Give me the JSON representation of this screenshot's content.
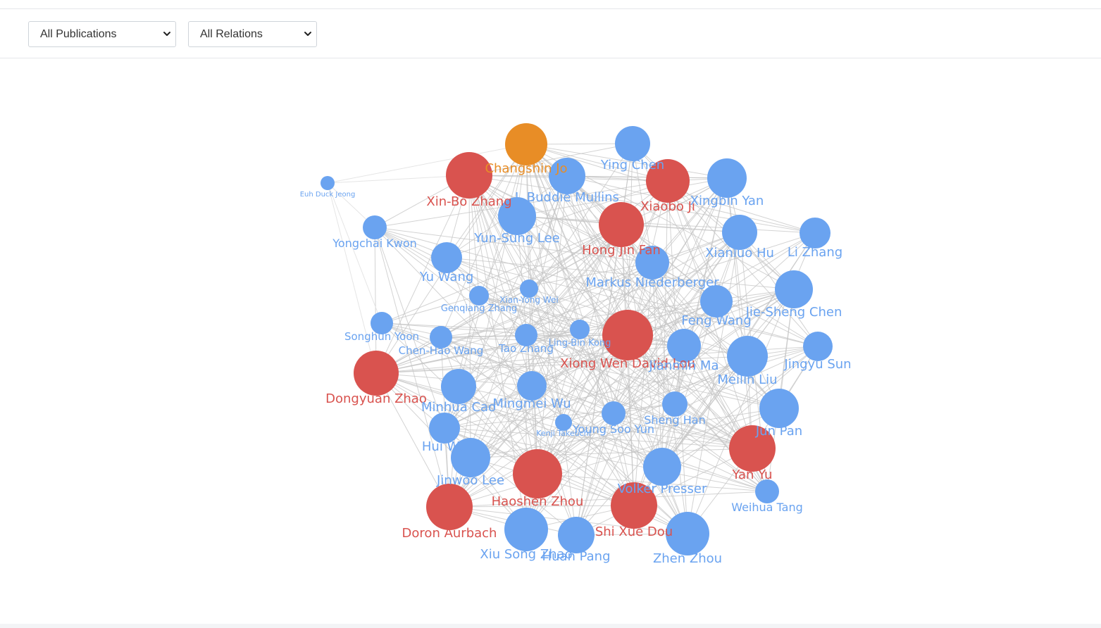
{
  "filters": {
    "publications": {
      "selected": "All Publications",
      "options": [
        "All Publications"
      ]
    },
    "relations": {
      "selected": "All Relations",
      "options": [
        "All Relations"
      ]
    }
  },
  "colors": {
    "edge": "#c4c4c4",
    "edge_light": "#e2e2e2",
    "blue": "#6aa3f0",
    "red": "#d9534f",
    "orange": "#e88d26"
  },
  "graph": {
    "nodes": [
      {
        "id": 0,
        "name": "Changshin Jo",
        "group": "orange"
      },
      {
        "id": 1,
        "name": "Ying Chen",
        "group": "blue"
      },
      {
        "id": 2,
        "name": "Xin-Bo Zhang",
        "group": "red"
      },
      {
        "id": 3,
        "name": "Euh Duck Jeong",
        "group": "blue"
      },
      {
        "id": 4,
        "name": "J. Buddie Mullins",
        "group": "blue"
      },
      {
        "id": 5,
        "name": "Xiaobo Ji",
        "group": "red"
      },
      {
        "id": 6,
        "name": "Xingbin Yan",
        "group": "blue"
      },
      {
        "id": 7,
        "name": "Yun-Sung Lee",
        "group": "blue"
      },
      {
        "id": 8,
        "name": "Hong Jin Fan",
        "group": "red"
      },
      {
        "id": 9,
        "name": "Yongchai Kwon",
        "group": "blue"
      },
      {
        "id": 10,
        "name": "Xianluo Hu",
        "group": "blue"
      },
      {
        "id": 11,
        "name": "Li Zhang",
        "group": "blue"
      },
      {
        "id": 12,
        "name": "Yu Wang",
        "group": "blue"
      },
      {
        "id": 13,
        "name": "Markus Niederberger",
        "group": "blue"
      },
      {
        "id": 14,
        "name": "Genqiang Zhang",
        "group": "blue"
      },
      {
        "id": 15,
        "name": "Xian-Yong Wei",
        "group": "blue"
      },
      {
        "id": 16,
        "name": "Jie-Sheng Chen",
        "group": "blue"
      },
      {
        "id": 17,
        "name": "Feng Wang",
        "group": "blue"
      },
      {
        "id": 18,
        "name": "Songhun Yoon",
        "group": "blue"
      },
      {
        "id": 19,
        "name": "Chen-Hao Wang",
        "group": "blue"
      },
      {
        "id": 20,
        "name": "Tao Zhang",
        "group": "blue"
      },
      {
        "id": 21,
        "name": "Ling-Bin Kong",
        "group": "blue"
      },
      {
        "id": 22,
        "name": "Xiong Wen David Lou",
        "group": "red"
      },
      {
        "id": 23,
        "name": "Jianmin Ma",
        "group": "blue"
      },
      {
        "id": 24,
        "name": "Meilin Liu",
        "group": "blue"
      },
      {
        "id": 25,
        "name": "Jingyu Sun",
        "group": "blue"
      },
      {
        "id": 26,
        "name": "Dongyuan Zhao",
        "group": "red"
      },
      {
        "id": 27,
        "name": "Minhua Cao",
        "group": "blue"
      },
      {
        "id": 28,
        "name": "Mingmei Wu",
        "group": "blue"
      },
      {
        "id": 29,
        "name": "Young Soo Yun",
        "group": "blue"
      },
      {
        "id": 30,
        "name": "Sheng Han",
        "group": "blue"
      },
      {
        "id": 31,
        "name": "Kenji Takeuchi",
        "group": "blue"
      },
      {
        "id": 32,
        "name": "Hui Wu",
        "group": "blue"
      },
      {
        "id": 33,
        "name": "Jun Pan",
        "group": "blue"
      },
      {
        "id": 34,
        "name": "Yan Yu",
        "group": "red"
      },
      {
        "id": 35,
        "name": "Jinwoo Lee",
        "group": "blue"
      },
      {
        "id": 36,
        "name": "Haoshen Zhou",
        "group": "red"
      },
      {
        "id": 37,
        "name": "Volker Presser",
        "group": "blue"
      },
      {
        "id": 38,
        "name": "Weihua Tang",
        "group": "blue"
      },
      {
        "id": 39,
        "name": "Doron Aurbach",
        "group": "red"
      },
      {
        "id": 40,
        "name": "Shi Xue Dou",
        "group": "red"
      },
      {
        "id": 41,
        "name": "Xiu Song Zhao",
        "group": "blue"
      },
      {
        "id": 42,
        "name": "Huan Pang",
        "group": "blue"
      },
      {
        "id": 43,
        "name": "Zhen Zhou",
        "group": "blue"
      }
    ]
  }
}
